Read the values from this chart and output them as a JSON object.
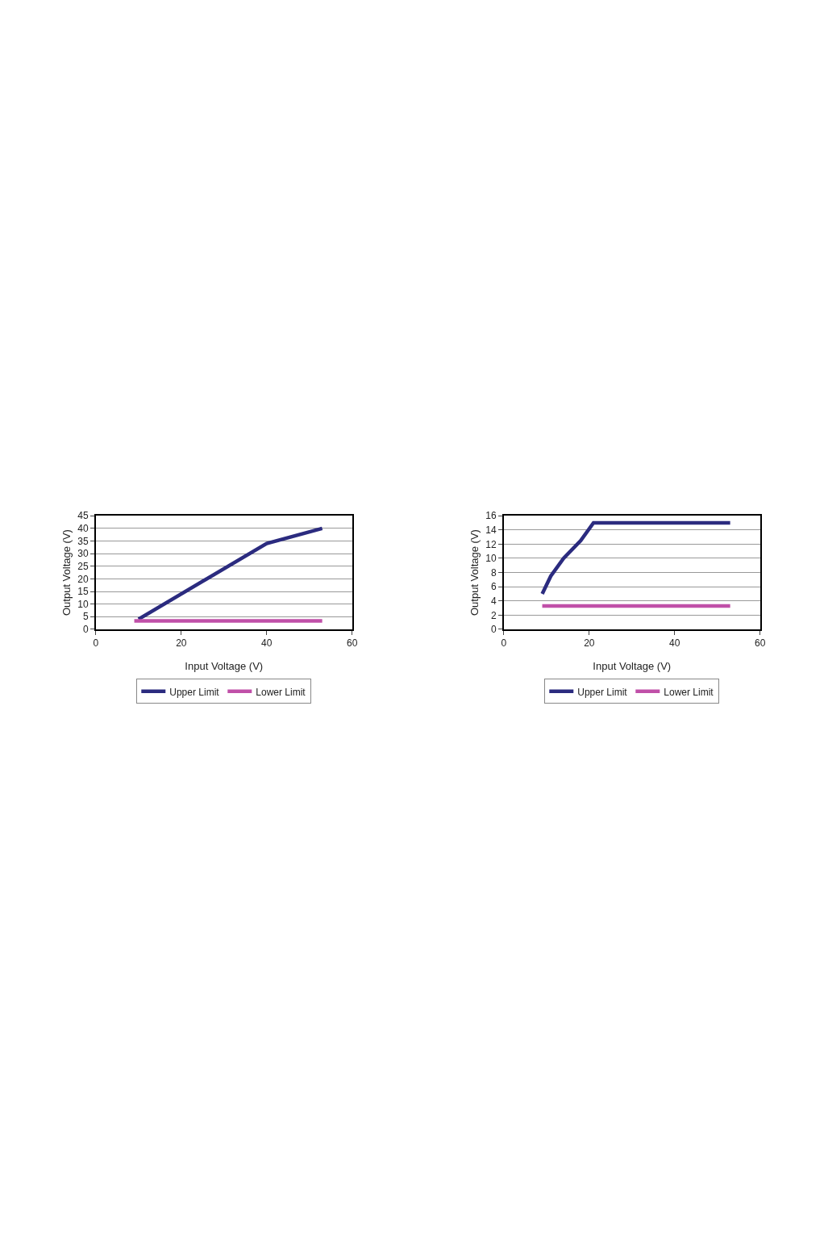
{
  "chart_data": [
    {
      "type": "line",
      "xlabel": "Input Voltage (V)",
      "ylabel": "Output Voltage (V)",
      "xlim": [
        0,
        60
      ],
      "xticks": [
        0,
        20,
        40,
        60
      ],
      "ylim": [
        0,
        45
      ],
      "yticks": [
        0,
        5,
        10,
        15,
        20,
        25,
        30,
        35,
        40,
        45
      ],
      "grid": "y",
      "legend": "bottom",
      "marker": "none",
      "line_style": "solid",
      "series": [
        {
          "name": "Upper Limit",
          "color": "#2b2b7f",
          "x": [
            10,
            40,
            53
          ],
          "values": [
            4,
            34,
            40
          ]
        },
        {
          "name": "Lower Limit",
          "color": "#c050a8",
          "x": [
            9,
            53
          ],
          "values": [
            3.3,
            3.3
          ]
        }
      ]
    },
    {
      "type": "line",
      "xlabel": "Input Voltage (V)",
      "ylabel": "Output Voltage (V)",
      "xlim": [
        0,
        60
      ],
      "xticks": [
        0,
        20,
        40,
        60
      ],
      "ylim": [
        0,
        16
      ],
      "yticks": [
        0,
        2,
        4,
        6,
        8,
        10,
        12,
        14,
        16
      ],
      "grid": "y",
      "legend": "bottom",
      "marker": "none",
      "line_style": "solid",
      "series": [
        {
          "name": "Upper Limit",
          "color": "#2b2b7f",
          "x": [
            9,
            11,
            14,
            18,
            21,
            53
          ],
          "values": [
            5,
            7.5,
            10,
            12.5,
            15,
            15
          ]
        },
        {
          "name": "Lower Limit",
          "color": "#c050a8",
          "x": [
            9,
            53
          ],
          "values": [
            3.3,
            3.3
          ]
        }
      ]
    }
  ]
}
